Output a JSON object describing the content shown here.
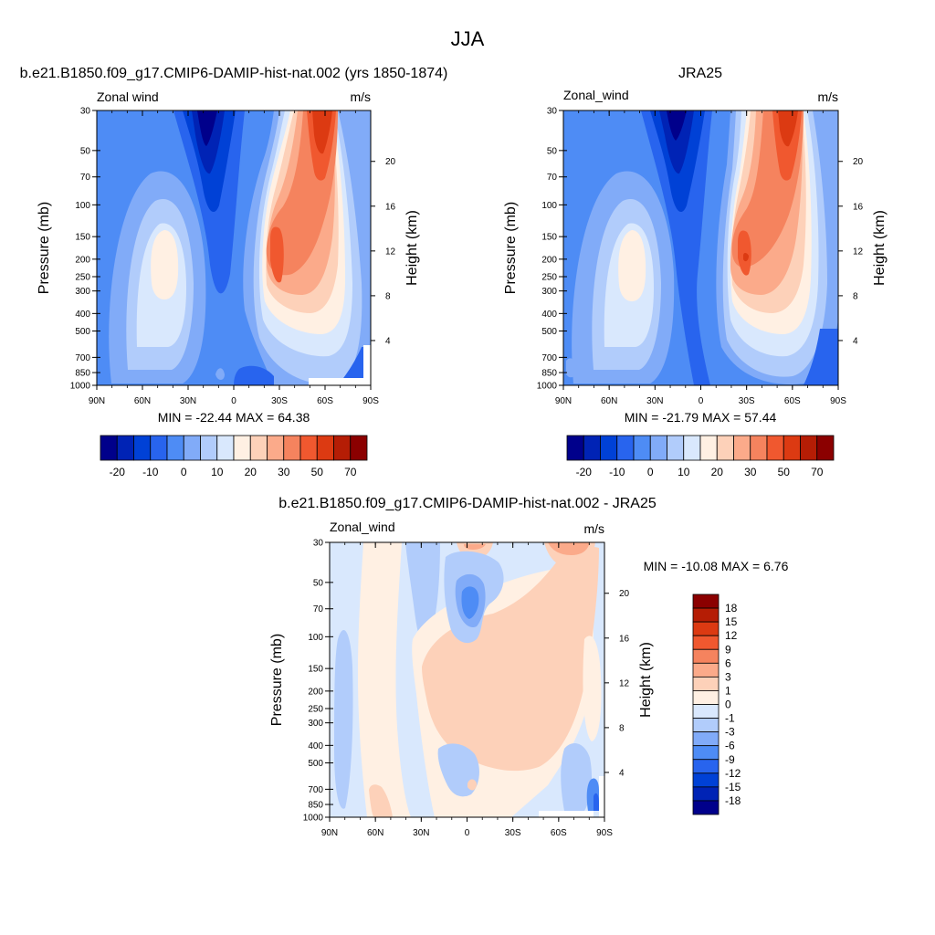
{
  "page_title": "JJA",
  "panels": [
    {
      "title": "b.e21.B1850.f09_g17.CMIP6-DAMIP-hist-nat.002 (yrs 1850-1874)",
      "left_label": "Zonal wind",
      "right_label": "m/s",
      "minmax": "MIN = -22.44  MAX = 64.38"
    },
    {
      "title": "JRA25",
      "left_label": "Zonal_wind",
      "right_label": "m/s",
      "minmax": "MIN = -21.79  MAX = 57.44"
    },
    {
      "title": "b.e21.B1850.f09_g17.CMIP6-DAMIP-hist-nat.002 - JRA25",
      "left_label": "Zonal_wind",
      "right_label": "m/s",
      "minmax": "MIN = -10.08  MAX =   6.76"
    }
  ],
  "axes": {
    "ylabel": "Pressure (mb)",
    "y2label": "Height (km)",
    "pressure_ticks": [
      "30",
      "50",
      "70",
      "100",
      "150",
      "200",
      "250",
      "300",
      "400",
      "500",
      "700",
      "850",
      "1000"
    ],
    "height_ticks": [
      "20",
      "16",
      "12",
      "8",
      "4"
    ],
    "lat_ticks": [
      "90N",
      "60N",
      "30N",
      "0",
      "30S",
      "60S",
      "90S"
    ]
  },
  "colorbars": {
    "field_labels": [
      "-20",
      "-10",
      "0",
      "10",
      "20",
      "30",
      "50",
      "70"
    ],
    "field_colors": [
      "#00008b",
      "#0023b5",
      "#0041d6",
      "#2864ee",
      "#4e8cf5",
      "#81abf8",
      "#b1ccfb",
      "#d9e8fd",
      "#fff0e3",
      "#fdd1b9",
      "#fbaa8a",
      "#f5835e",
      "#f0582f",
      "#dc3a12",
      "#b51d05",
      "#8b0000"
    ],
    "diff_labels": [
      "18",
      "15",
      "12",
      "9",
      "6",
      "3",
      "1",
      "0",
      "-1",
      "-3",
      "-6",
      "-9",
      "-12",
      "-15",
      "-18"
    ],
    "diff_colors": [
      "#8b0000",
      "#b51d05",
      "#dc3a12",
      "#f0582f",
      "#f5835e",
      "#fbaa8a",
      "#fdd1b9",
      "#fff0e3",
      "#d9e8fd",
      "#b1ccfb",
      "#81abf8",
      "#4e8cf5",
      "#2864ee",
      "#0041d6",
      "#0023b5",
      "#00008b"
    ]
  },
  "chart_data": [
    {
      "type": "heatmap",
      "title": "b.e21.B1850.f09_g17.CMIP6-DAMIP-hist-nat.002 (yrs 1850-1874)",
      "variable": "Zonal wind",
      "units": "m/s",
      "xlabel": "",
      "ylabel": "Pressure (mb)",
      "y2label": "Height (km)",
      "x_ticks": [
        "90N",
        "60N",
        "30N",
        "0",
        "30S",
        "60S",
        "90S"
      ],
      "xlim": [
        90,
        -90
      ],
      "ylim_mb": [
        1000,
        30
      ],
      "y_scale": "log",
      "min": -22.44,
      "max": 64.38,
      "contour_levels": [
        -20,
        -15,
        -10,
        -5,
        0,
        5,
        10,
        15,
        20,
        25,
        30,
        40,
        50,
        60,
        70
      ],
      "features": [
        {
          "kind": "max",
          "lat": -50,
          "p_mb": 30,
          "value": 64
        },
        {
          "kind": "max",
          "lat": -32,
          "p_mb": 200,
          "value": 45
        },
        {
          "kind": "max",
          "lat": 45,
          "p_mb": 200,
          "value": 21
        },
        {
          "kind": "min",
          "lat": 20,
          "p_mb": 30,
          "value": -22
        }
      ]
    },
    {
      "type": "heatmap",
      "title": "JRA25",
      "variable": "Zonal_wind",
      "units": "m/s",
      "xlabel": "",
      "ylabel": "Pressure (mb)",
      "y2label": "Height (km)",
      "x_ticks": [
        "90N",
        "60N",
        "30N",
        "0",
        "30S",
        "60S",
        "90S"
      ],
      "xlim": [
        90,
        -90
      ],
      "ylim_mb": [
        1000,
        30
      ],
      "y_scale": "log",
      "min": -21.79,
      "max": 57.44,
      "contour_levels": [
        -20,
        -15,
        -10,
        -5,
        0,
        5,
        10,
        15,
        20,
        25,
        30,
        40,
        50,
        60,
        70
      ],
      "features": [
        {
          "kind": "max",
          "lat": -58,
          "p_mb": 30,
          "value": 57
        },
        {
          "kind": "max",
          "lat": -30,
          "p_mb": 200,
          "value": 45
        },
        {
          "kind": "max",
          "lat": 45,
          "p_mb": 200,
          "value": 20
        },
        {
          "kind": "min",
          "lat": 15,
          "p_mb": 30,
          "value": -21
        }
      ]
    },
    {
      "type": "heatmap",
      "title": "b.e21.B1850.f09_g17.CMIP6-DAMIP-hist-nat.002 - JRA25",
      "variable": "Zonal_wind",
      "units": "m/s",
      "xlabel": "",
      "ylabel": "Pressure (mb)",
      "y2label": "Height (km)",
      "x_ticks": [
        "90N",
        "60N",
        "30N",
        "0",
        "30S",
        "60S",
        "90S"
      ],
      "xlim": [
        90,
        -90
      ],
      "ylim_mb": [
        1000,
        30
      ],
      "y_scale": "log",
      "min": -10.08,
      "max": 6.76,
      "contour_levels": [
        -18,
        -15,
        -12,
        -9,
        -6,
        -3,
        -1,
        0,
        1,
        3,
        6,
        9,
        12,
        15,
        18
      ],
      "features": [
        {
          "kind": "max",
          "lat": -55,
          "p_mb": 30,
          "value": 6
        },
        {
          "kind": "max",
          "lat": -10,
          "p_mb": 30,
          "value": 5
        },
        {
          "kind": "max",
          "lat": -20,
          "p_mb": 200,
          "value": 4
        },
        {
          "kind": "max",
          "lat": 40,
          "p_mb": 200,
          "value": 1.5
        },
        {
          "kind": "min",
          "lat": 0,
          "p_mb": 70,
          "value": -10
        },
        {
          "kind": "min",
          "lat": 80,
          "p_mb": 300,
          "value": -2
        },
        {
          "kind": "min",
          "lat": -75,
          "p_mb": 700,
          "value": -4
        }
      ]
    }
  ]
}
